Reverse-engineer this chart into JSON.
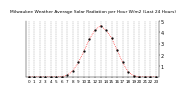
{
  "title": "Milwaukee Weather Average Solar Radiation per Hour W/m2 (Last 24 Hours)",
  "x_hours": [
    0,
    1,
    2,
    3,
    4,
    5,
    6,
    7,
    8,
    9,
    10,
    11,
    12,
    13,
    14,
    15,
    16,
    17,
    18,
    19,
    20,
    21,
    22,
    23
  ],
  "y_values": [
    0,
    0,
    0,
    0,
    0,
    0,
    2,
    15,
    55,
    130,
    230,
    340,
    420,
    460,
    420,
    350,
    240,
    130,
    45,
    10,
    1,
    0,
    0,
    0
  ],
  "line_color": "#ff0000",
  "background_color": "#ffffff",
  "grid_color": "#999999",
  "ylim": [
    0,
    500
  ],
  "yticks": [
    100,
    200,
    300,
    400,
    500
  ],
  "ytick_labels": [
    "1",
    "2",
    "3",
    "4",
    "5"
  ],
  "ylabel_fontsize": 3.5,
  "xlabel_fontsize": 3.0,
  "title_fontsize": 3.2,
  "markersize": 1.2,
  "linewidth": 0.5
}
